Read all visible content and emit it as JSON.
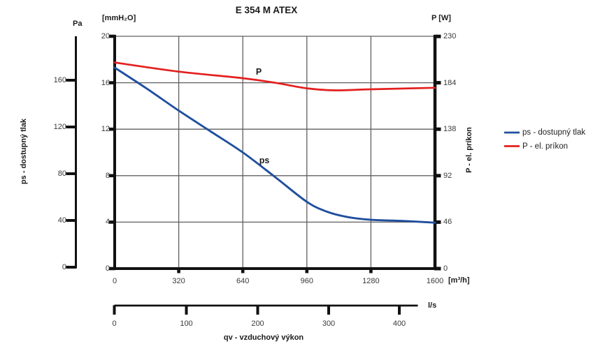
{
  "chart_data": {
    "type": "line",
    "title": "E 354 M ATEX",
    "grid": "on",
    "legend_position": "right",
    "x": {
      "label": "qv - vzduchový výkon",
      "unit_primary": "[m³/h]",
      "unit_secondary": "l/s",
      "range_m3h": [
        0,
        1600
      ],
      "ticks_m3h": [
        0,
        320,
        640,
        960,
        1280,
        1600
      ],
      "ticks_ls": [
        0,
        100,
        200,
        300,
        400
      ]
    },
    "y_left": {
      "label": "ps - dostupný tlak",
      "unit_pa": "Pa",
      "unit_mmh2o": "[mmH₂O]",
      "range_mmh2o": [
        0,
        20
      ],
      "ticks_mmh2o": [
        20,
        16,
        12,
        8,
        4,
        0
      ],
      "ticks_pa": [
        160,
        120,
        80,
        40,
        0
      ]
    },
    "y_right": {
      "label": "P - el. príkon",
      "unit": "P [W]",
      "range_w": [
        0,
        230
      ],
      "ticks_w": [
        230,
        184,
        138,
        92,
        46,
        0
      ]
    },
    "series": [
      {
        "name": "ps - dostupný tlak",
        "curve_label": "ps",
        "axis": "mmh2o",
        "color": "#1f4f9e",
        "points": [
          [
            0,
            17.3
          ],
          [
            160,
            15.5
          ],
          [
            320,
            13.6
          ],
          [
            480,
            11.8
          ],
          [
            640,
            10.0
          ],
          [
            800,
            7.9
          ],
          [
            960,
            5.75
          ],
          [
            1060,
            4.9
          ],
          [
            1160,
            4.45
          ],
          [
            1280,
            4.2
          ],
          [
            1440,
            4.1
          ],
          [
            1600,
            3.95
          ]
        ]
      },
      {
        "name": "P - el. príkon",
        "curve_label": "P",
        "axis": "w",
        "color": "#e3201f",
        "points": [
          [
            0,
            204
          ],
          [
            320,
            195
          ],
          [
            640,
            188.5
          ],
          [
            800,
            184
          ],
          [
            960,
            178.5
          ],
          [
            1100,
            176.5
          ],
          [
            1280,
            177.5
          ],
          [
            1600,
            179
          ]
        ]
      }
    ],
    "legend": {
      "items": [
        "ps - dostupný tlak",
        "P - el. príkon"
      ]
    }
  }
}
